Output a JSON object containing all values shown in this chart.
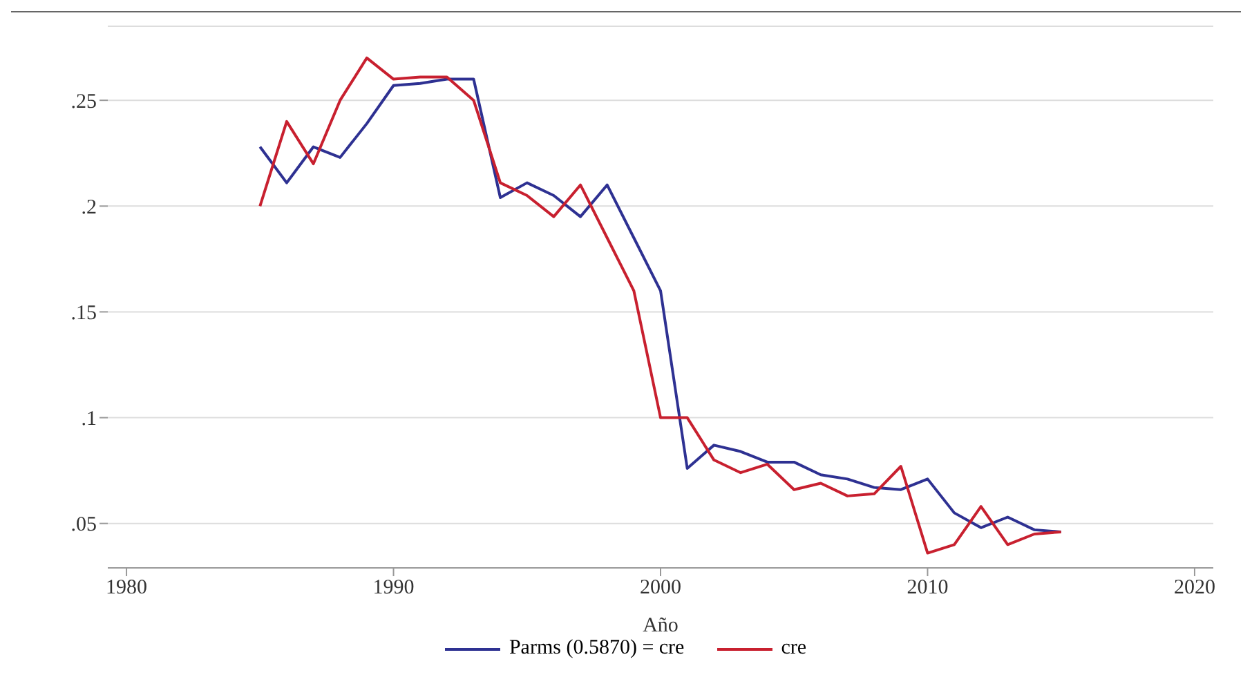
{
  "chart_data": {
    "type": "line",
    "xlabel": "Año",
    "x": [
      1985,
      1986,
      1987,
      1988,
      1989,
      1990,
      1991,
      1992,
      1993,
      1994,
      1995,
      1996,
      1997,
      1998,
      1999,
      2000,
      2001,
      2002,
      2003,
      2004,
      2005,
      2006,
      2007,
      2008,
      2009,
      2010,
      2011,
      2012,
      2013,
      2014,
      2015
    ],
    "series": [
      {
        "name": "Parms (0.5870) = cre",
        "color": "#2e3192",
        "values": [
          0.228,
          0.211,
          0.228,
          0.223,
          0.239,
          0.257,
          0.258,
          0.26,
          0.26,
          0.204,
          0.211,
          0.205,
          0.195,
          0.21,
          0.185,
          0.16,
          0.076,
          0.087,
          0.084,
          0.079,
          0.079,
          0.073,
          0.071,
          0.067,
          0.066,
          0.071,
          0.055,
          0.048,
          0.053,
          0.047,
          0.046
        ]
      },
      {
        "name": "cre",
        "color": "#c8202f",
        "values": [
          0.2,
          0.24,
          0.22,
          0.25,
          0.27,
          0.26,
          0.261,
          0.261,
          0.25,
          0.211,
          0.205,
          0.195,
          0.21,
          0.185,
          0.16,
          0.1,
          0.1,
          0.08,
          0.074,
          0.078,
          0.066,
          0.069,
          0.063,
          0.064,
          0.077,
          0.036,
          0.04,
          0.058,
          0.04,
          0.045,
          0.046
        ]
      }
    ],
    "xlim": [
      1979.3,
      2020.7
    ],
    "xticks": [
      1980,
      1990,
      2000,
      2010,
      2020
    ],
    "ylim": [
      0.029,
      0.285
    ],
    "yticks": [
      {
        "value": 0.05,
        "label": ".05"
      },
      {
        "value": 0.1,
        "label": ".1"
      },
      {
        "value": 0.15,
        "label": ".15"
      },
      {
        "value": 0.2,
        "label": ".2"
      },
      {
        "value": 0.25,
        "label": ".25"
      }
    ],
    "grid": "y",
    "legend": "bottom",
    "marker": "none",
    "line_style": "solid"
  }
}
